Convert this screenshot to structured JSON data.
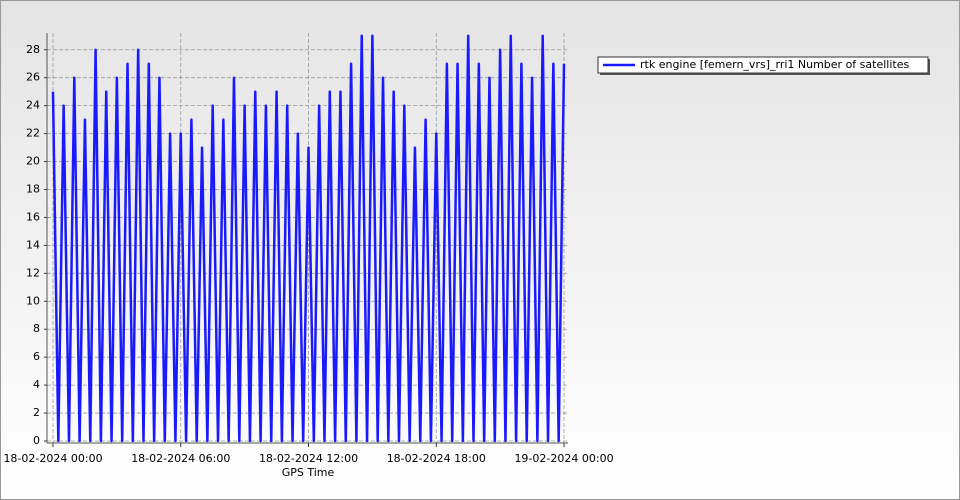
{
  "chart_data": {
    "type": "line",
    "x_label": "GPS Time",
    "x": [
      "18-02-2024 00:00",
      "18-02-2024 00:15",
      "18-02-2024 00:30",
      "18-02-2024 00:45",
      "18-02-2024 01:00",
      "18-02-2024 01:15",
      "18-02-2024 01:30",
      "18-02-2024 01:45",
      "18-02-2024 02:00",
      "18-02-2024 02:15",
      "18-02-2024 02:30",
      "18-02-2024 02:45",
      "18-02-2024 03:00",
      "18-02-2024 03:15",
      "18-02-2024 03:30",
      "18-02-2024 03:45",
      "18-02-2024 04:00",
      "18-02-2024 04:15",
      "18-02-2024 04:30",
      "18-02-2024 04:45",
      "18-02-2024 05:00",
      "18-02-2024 05:15",
      "18-02-2024 05:30",
      "18-02-2024 05:45",
      "18-02-2024 06:00",
      "18-02-2024 06:15",
      "18-02-2024 06:30",
      "18-02-2024 06:45",
      "18-02-2024 07:00",
      "18-02-2024 07:15",
      "18-02-2024 07:30",
      "18-02-2024 07:45",
      "18-02-2024 08:00",
      "18-02-2024 08:15",
      "18-02-2024 08:30",
      "18-02-2024 08:45",
      "18-02-2024 09:00",
      "18-02-2024 09:15",
      "18-02-2024 09:30",
      "18-02-2024 09:45",
      "18-02-2024 10:00",
      "18-02-2024 10:15",
      "18-02-2024 10:30",
      "18-02-2024 10:45",
      "18-02-2024 11:00",
      "18-02-2024 11:15",
      "18-02-2024 11:30",
      "18-02-2024 11:45",
      "18-02-2024 12:00",
      "18-02-2024 12:15",
      "18-02-2024 12:30",
      "18-02-2024 12:45",
      "18-02-2024 13:00",
      "18-02-2024 13:15",
      "18-02-2024 13:30",
      "18-02-2024 13:45",
      "18-02-2024 14:00",
      "18-02-2024 14:15",
      "18-02-2024 14:30",
      "18-02-2024 14:45",
      "18-02-2024 15:00",
      "18-02-2024 15:15",
      "18-02-2024 15:30",
      "18-02-2024 15:45",
      "18-02-2024 16:00",
      "18-02-2024 16:15",
      "18-02-2024 16:30",
      "18-02-2024 16:45",
      "18-02-2024 17:00",
      "18-02-2024 17:15",
      "18-02-2024 17:30",
      "18-02-2024 17:45",
      "18-02-2024 18:00",
      "18-02-2024 18:15",
      "18-02-2024 18:30",
      "18-02-2024 18:45",
      "18-02-2024 19:00",
      "18-02-2024 19:15",
      "18-02-2024 19:30",
      "18-02-2024 19:45",
      "18-02-2024 20:00",
      "18-02-2024 20:15",
      "18-02-2024 20:30",
      "18-02-2024 20:45",
      "18-02-2024 21:00",
      "18-02-2024 21:15",
      "18-02-2024 21:30",
      "18-02-2024 21:45",
      "18-02-2024 22:00",
      "18-02-2024 22:15",
      "18-02-2024 22:30",
      "18-02-2024 22:45",
      "18-02-2024 23:00",
      "18-02-2024 23:15",
      "18-02-2024 23:30",
      "18-02-2024 23:45",
      "19-02-2024 00:00"
    ],
    "series": [
      {
        "name": "rtk engine [femern_vrs]_rri1 Number of satellites",
        "color": "#1a1aff",
        "values": [
          25,
          0,
          24,
          0,
          26,
          0,
          23,
          0,
          28,
          0,
          25,
          0,
          26,
          0,
          27,
          0,
          28,
          0,
          27,
          0,
          26,
          0,
          22,
          0,
          22,
          0,
          23,
          0,
          21,
          0,
          24,
          0,
          23,
          0,
          26,
          0,
          24,
          0,
          25,
          0,
          24,
          0,
          25,
          0,
          24,
          0,
          22,
          0,
          21,
          0,
          24,
          0,
          25,
          0,
          25,
          0,
          27,
          0,
          29,
          0,
          29,
          0,
          26,
          0,
          25,
          0,
          24,
          0,
          21,
          0,
          23,
          0,
          22,
          0,
          27,
          0,
          27,
          0,
          29,
          0,
          27,
          0,
          26,
          0,
          28,
          0,
          29,
          0,
          27,
          0,
          26,
          0,
          29,
          0,
          27,
          0,
          27
        ]
      }
    ],
    "xlim": [
      "18-02-2024 00:00",
      "19-02-2024 00:00"
    ],
    "xticks": [
      "18-02-2024 00:00",
      "18-02-2024 06:00",
      "18-02-2024 12:00",
      "18-02-2024 18:00",
      "19-02-2024 00:00"
    ],
    "ylim": [
      0,
      29.2
    ],
    "yticks": [
      0,
      2,
      4,
      6,
      8,
      10,
      12,
      14,
      16,
      18,
      20,
      22,
      24,
      26,
      28
    ],
    "grid": true,
    "legend": "top-right"
  }
}
